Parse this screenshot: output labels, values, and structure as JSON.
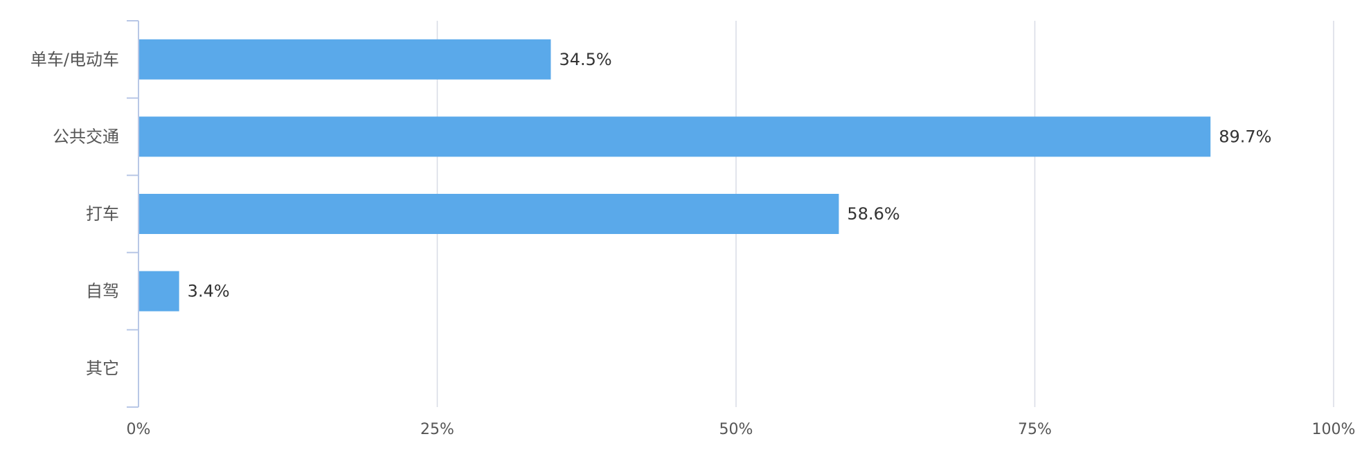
{
  "chart_data": {
    "type": "bar",
    "orientation": "horizontal",
    "categories": [
      "单车/电动车",
      "公共交通",
      "打车",
      "自驾",
      "其它"
    ],
    "values": [
      34.5,
      89.7,
      58.6,
      3.4,
      0
    ],
    "value_labels": [
      "34.5%",
      "89.7%",
      "58.6%",
      "3.4%",
      ""
    ],
    "x_ticks": [
      0,
      25,
      50,
      75,
      100
    ],
    "x_tick_labels": [
      "0%",
      "25%",
      "50%",
      "75%",
      "100%"
    ],
    "xlim": [
      0,
      100
    ],
    "grid": true,
    "title": "",
    "xlabel": "",
    "ylabel": ""
  },
  "colors": {
    "bar": "#5aa9ea",
    "grid": "#d8dce6",
    "axis": "#b8c7e6",
    "label_text": "#555555",
    "value_text": "#333333"
  }
}
